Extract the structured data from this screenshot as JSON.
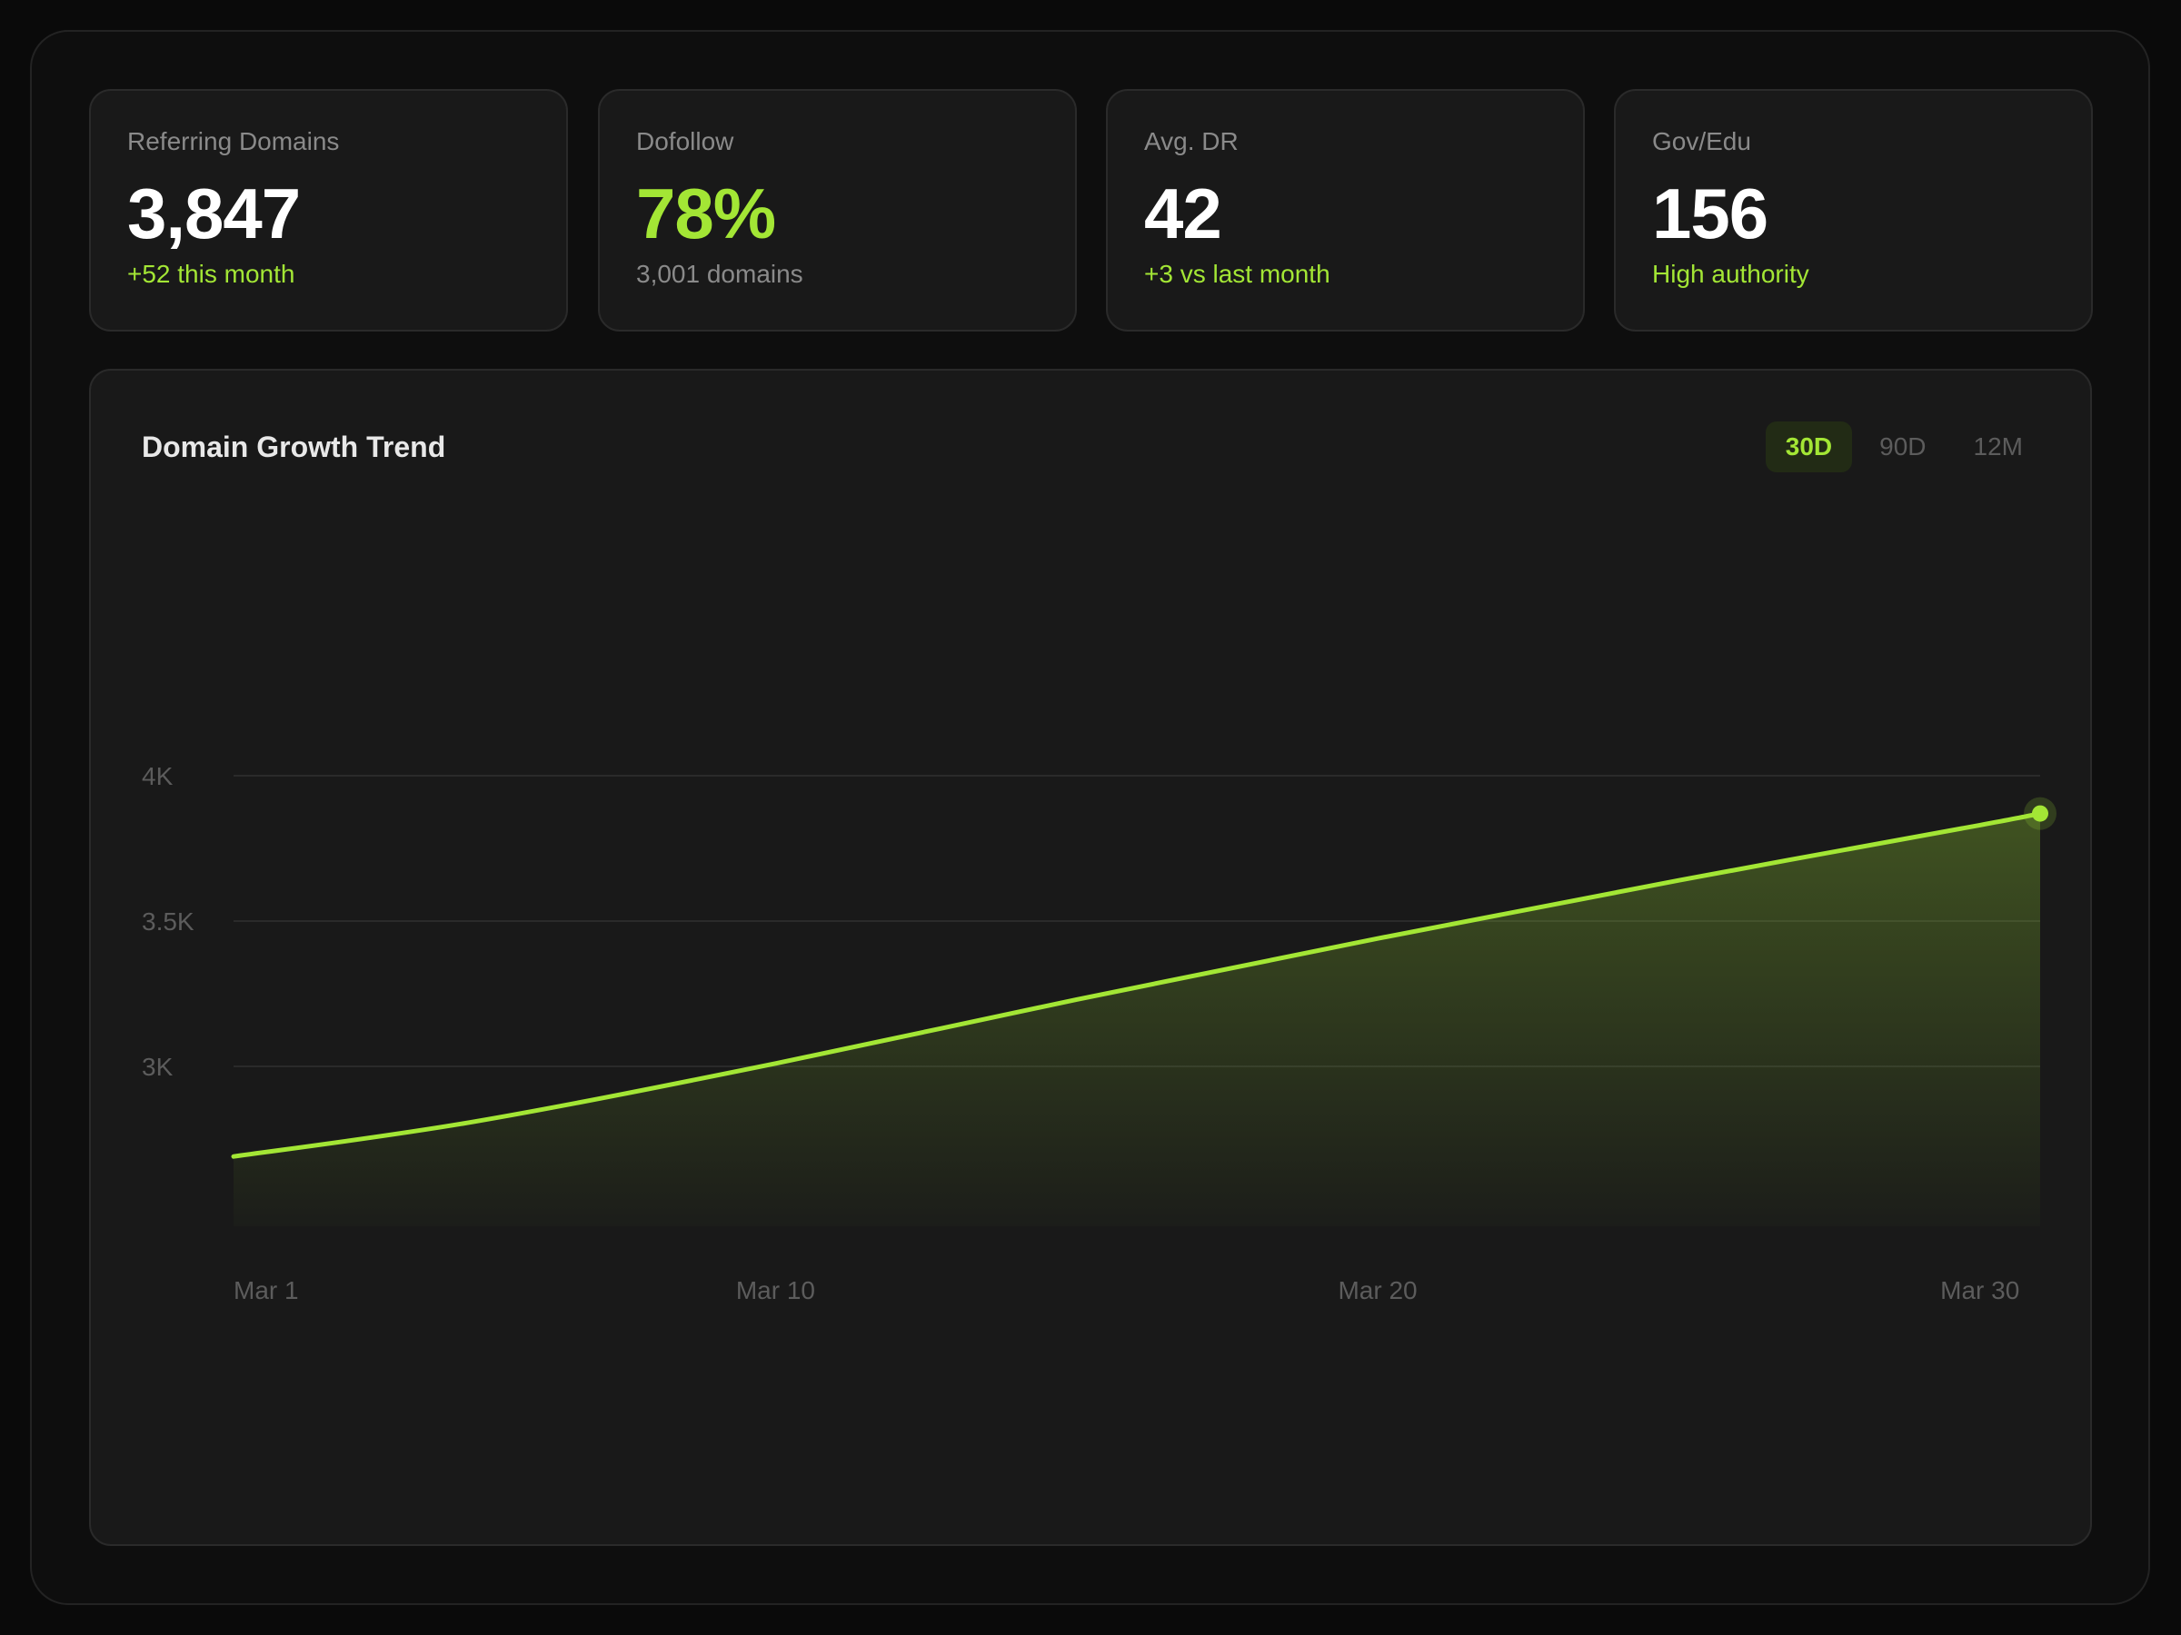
{
  "stats": [
    {
      "label": "Referring Domains",
      "value": "3,847",
      "sub": "+52 this month",
      "value_style": "default",
      "sub_style": "accent"
    },
    {
      "label": "Dofollow",
      "value": "78%",
      "sub": "3,001 domains",
      "value_style": "accent",
      "sub_style": "muted"
    },
    {
      "label": "Avg. DR",
      "value": "42",
      "sub": "+3 vs last month",
      "value_style": "default",
      "sub_style": "accent"
    },
    {
      "label": "Gov/Edu",
      "value": "156",
      "sub": "High authority",
      "value_style": "default",
      "sub_style": "accent"
    }
  ],
  "chart": {
    "title": "Domain Growth Trend",
    "ranges": [
      "30D",
      "90D",
      "12M"
    ],
    "active_range": "30D"
  },
  "colors": {
    "accent": "#a3e635",
    "background": "#0a0a0a",
    "card": "#191919",
    "muted_text": "#8a8a8a"
  },
  "chart_data": {
    "type": "area",
    "x": [
      1,
      5,
      10,
      15,
      20,
      25,
      30,
      31
    ],
    "x_ticks": [
      1,
      10,
      20,
      30
    ],
    "x_tick_labels": [
      "Mar 1",
      "Mar 10",
      "Mar 20",
      "Mar 30"
    ],
    "y_ticks": [
      3000,
      3500,
      4000
    ],
    "y_tick_labels": [
      "3K",
      "3.5K",
      "4K"
    ],
    "ylim": [
      2450,
      4000
    ],
    "xlim": [
      1,
      31
    ],
    "series": [
      {
        "values": [
          2690,
          2810,
          3010,
          3230,
          3440,
          3640,
          3830,
          3870
        ]
      }
    ],
    "grid": true,
    "legend": "none",
    "end_marker": true
  }
}
